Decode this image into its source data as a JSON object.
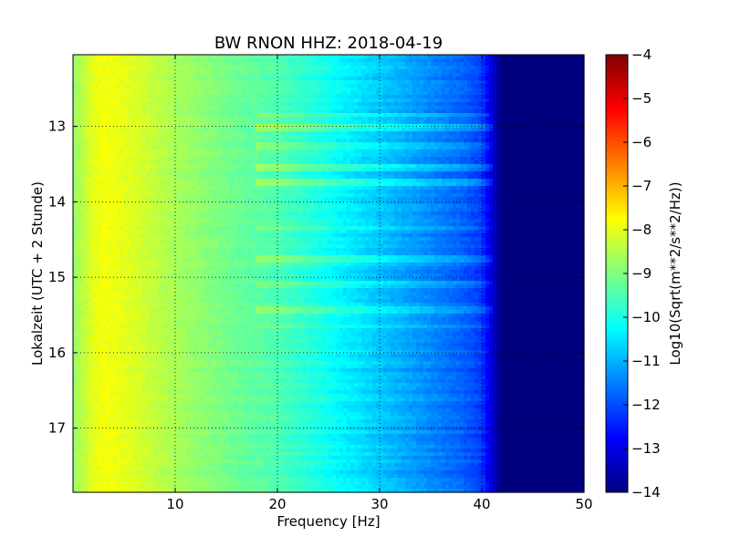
{
  "chart_data": {
    "type": "heatmap",
    "title": "BW RNON HHZ: 2018-04-19",
    "xlabel": "Frequency [Hz]",
    "ylabel": "Lokalzeit (UTC + 2 Stunde)",
    "colorbar_label": "Log10(Sqrt(m**2/s**2/Hz))",
    "xlim": [
      0,
      50
    ],
    "ylim": [
      17.85,
      12.05
    ],
    "x_ticks": [
      10,
      20,
      30,
      40,
      50
    ],
    "x_tick_labels": [
      "10",
      "20",
      "30",
      "40",
      "50"
    ],
    "y_ticks": [
      13,
      14,
      15,
      16,
      17
    ],
    "y_tick_labels": [
      "13",
      "14",
      "15",
      "16",
      "17"
    ],
    "colorbar_range": [
      -14,
      -4
    ],
    "colorbar_ticks": [
      -4,
      -5,
      -6,
      -7,
      -8,
      -9,
      -10,
      -11,
      -12,
      -13,
      -14
    ],
    "colorbar_tick_labels": [
      "−4",
      "−5",
      "−6",
      "−7",
      "−8",
      "−9",
      "−10",
      "−11",
      "−12",
      "−13",
      "−14"
    ],
    "colormap": "jet",
    "grid": true,
    "grid_style": "dotted",
    "spectrum_profile": {
      "frequency_hz": [
        0,
        1,
        2,
        3,
        4,
        6,
        8,
        10,
        12,
        14,
        16,
        18,
        20,
        22,
        24,
        26,
        28,
        30,
        32,
        34,
        36,
        38,
        40,
        40.5,
        41,
        41.5,
        42,
        50
      ],
      "log10_psd": [
        -8.8,
        -8.4,
        -8.0,
        -7.85,
        -7.9,
        -8.1,
        -8.35,
        -8.6,
        -8.8,
        -9.0,
        -9.2,
        -9.35,
        -9.5,
        -9.75,
        -10.0,
        -10.3,
        -10.55,
        -10.8,
        -11.05,
        -11.3,
        -11.55,
        -11.8,
        -12.2,
        -12.7,
        -13.2,
        -13.6,
        -14.0,
        -14.0
      ]
    },
    "noise_bands": [
      {
        "time_h": 12.85,
        "log10_offset": 0.6
      },
      {
        "time_h": 13.0,
        "log10_offset": 0.7
      },
      {
        "time_h": 13.25,
        "log10_offset": 0.5
      },
      {
        "time_h": 13.55,
        "log10_offset": 0.6
      },
      {
        "time_h": 13.75,
        "log10_offset": 0.7
      },
      {
        "time_h": 14.35,
        "log10_offset": 0.5
      },
      {
        "time_h": 14.75,
        "log10_offset": 0.6
      },
      {
        "time_h": 15.1,
        "log10_offset": 0.4
      },
      {
        "time_h": 15.45,
        "log10_offset": 0.5
      },
      {
        "time_h": 15.65,
        "log10_offset": 0.5
      }
    ],
    "colorbar_stops": [
      {
        "pos": 0.0,
        "color": "#00007f"
      },
      {
        "pos": 0.125,
        "color": "#0000ff"
      },
      {
        "pos": 0.375,
        "color": "#00ffff"
      },
      {
        "pos": 0.5,
        "color": "#7fff7f"
      },
      {
        "pos": 0.625,
        "color": "#ffff00"
      },
      {
        "pos": 0.875,
        "color": "#ff0000"
      },
      {
        "pos": 1.0,
        "color": "#7f0000"
      }
    ]
  }
}
